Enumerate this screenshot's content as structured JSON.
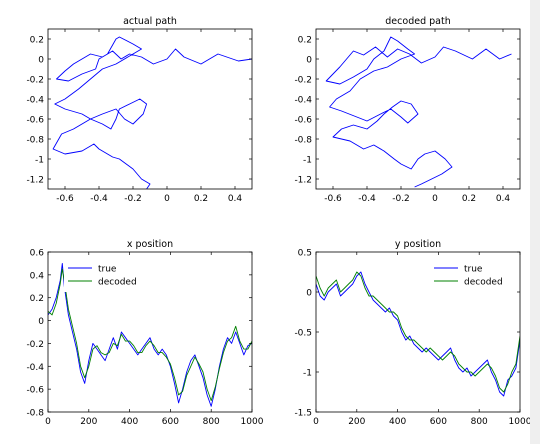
{
  "figure": {
    "background": "#ffffff",
    "axis_color": "#000000"
  },
  "chart_data": [
    {
      "type": "line",
      "title": "actual path",
      "xlabel": "",
      "ylabel": "",
      "xlim": [
        -0.7,
        0.5
      ],
      "ylim": [
        -1.3,
        0.3
      ],
      "xticks": [
        -0.6,
        -0.4,
        -0.2,
        0,
        0.2,
        0.4
      ],
      "xtick_labels": [
        "-0.6",
        "-0.4",
        "-0.2",
        "0",
        "0.2",
        "0.4"
      ],
      "yticks": [
        0.2,
        0,
        -0.2,
        -0.4,
        -0.6,
        -0.8,
        -1,
        -1.2
      ],
      "ytick_labels": [
        "0.2",
        "0",
        "-0.2",
        "-0.4",
        "-0.6",
        "-0.8",
        "-1",
        "-1.2"
      ],
      "grid": false,
      "series": [
        {
          "color": "#0000ff",
          "x": [
            0.5,
            0.42,
            0.3,
            0.2,
            0.1,
            0.05,
            0.0,
            -0.08,
            -0.15,
            -0.22,
            -0.27,
            -0.32,
            -0.38,
            -0.45,
            -0.5,
            -0.55,
            -0.6,
            -0.65,
            -0.58,
            -0.5,
            -0.42,
            -0.4,
            -0.35,
            -0.3,
            -0.28,
            -0.2,
            -0.15,
            -0.22,
            -0.3,
            -0.38,
            -0.45,
            -0.52,
            -0.6,
            -0.66,
            -0.6,
            -0.5,
            -0.45,
            -0.38,
            -0.3,
            -0.25,
            -0.2,
            -0.14,
            -0.12,
            -0.16,
            -0.22,
            -0.28,
            -0.3,
            -0.33,
            -0.38,
            -0.45,
            -0.55,
            -0.62,
            -0.67,
            -0.6,
            -0.5,
            -0.43,
            -0.4,
            -0.32,
            -0.28,
            -0.24,
            -0.2,
            -0.15,
            -0.1,
            -0.12
          ],
          "y": [
            0.0,
            -0.02,
            0.05,
            -0.05,
            0.02,
            0.1,
            0.0,
            -0.05,
            0.02,
            0.05,
            0.0,
            0.08,
            0.02,
            0.05,
            0.0,
            -0.05,
            -0.12,
            -0.2,
            -0.22,
            -0.15,
            -0.1,
            0.0,
            0.05,
            0.2,
            0.22,
            0.15,
            0.1,
            0.03,
            -0.05,
            -0.1,
            -0.2,
            -0.3,
            -0.4,
            -0.45,
            -0.5,
            -0.55,
            -0.6,
            -0.55,
            -0.5,
            -0.6,
            -0.65,
            -0.55,
            -0.45,
            -0.4,
            -0.45,
            -0.5,
            -0.6,
            -0.7,
            -0.65,
            -0.6,
            -0.7,
            -0.75,
            -0.9,
            -0.95,
            -0.92,
            -0.85,
            -0.9,
            -0.98,
            -1.0,
            -1.05,
            -1.1,
            -1.2,
            -1.25,
            -1.3
          ]
        }
      ]
    },
    {
      "type": "line",
      "title": "decoded path",
      "xlabel": "",
      "ylabel": "",
      "xlim": [
        -0.7,
        0.5
      ],
      "ylim": [
        -1.3,
        0.3
      ],
      "xticks": [
        -0.6,
        -0.4,
        -0.2,
        0,
        0.2,
        0.4
      ],
      "xtick_labels": [
        "-0.6",
        "-0.4",
        "-0.2",
        "0",
        "0.2",
        "0.4"
      ],
      "yticks": [
        0.2,
        0,
        -0.2,
        -0.4,
        -0.6,
        -0.8,
        -1,
        -1.2
      ],
      "ytick_labels": [
        "0.2",
        "0",
        "-0.2",
        "-0.4",
        "-0.6",
        "-0.8",
        "-1",
        "-1.2"
      ],
      "grid": false,
      "series": [
        {
          "color": "#0000ff",
          "x": [
            0.45,
            0.38,
            0.3,
            0.22,
            0.12,
            0.05,
            0.0,
            -0.08,
            -0.15,
            -0.22,
            -0.28,
            -0.35,
            -0.42,
            -0.48,
            -0.52,
            -0.56,
            -0.6,
            -0.64,
            -0.56,
            -0.48,
            -0.4,
            -0.36,
            -0.3,
            -0.26,
            -0.22,
            -0.16,
            -0.12,
            -0.2,
            -0.28,
            -0.36,
            -0.44,
            -0.5,
            -0.58,
            -0.62,
            -0.55,
            -0.46,
            -0.4,
            -0.32,
            -0.26,
            -0.2,
            -0.16,
            -0.1,
            -0.14,
            -0.2,
            -0.25,
            -0.3,
            -0.34,
            -0.4,
            -0.48,
            -0.55,
            -0.6,
            -0.5,
            -0.42,
            -0.36,
            -0.3,
            -0.24,
            -0.2,
            -0.14,
            -0.1,
            -0.06,
            0.0,
            0.06,
            0.1,
            0.04,
            -0.02,
            -0.08,
            -0.12
          ],
          "y": [
            0.05,
            0.0,
            0.1,
            0.0,
            0.08,
            0.12,
            0.02,
            -0.04,
            0.05,
            0.1,
            0.02,
            0.12,
            0.04,
            0.08,
            0.0,
            -0.08,
            -0.15,
            -0.22,
            -0.25,
            -0.18,
            -0.1,
            0.0,
            0.08,
            0.22,
            0.18,
            0.1,
            0.05,
            0.0,
            -0.08,
            -0.12,
            -0.2,
            -0.32,
            -0.4,
            -0.48,
            -0.52,
            -0.58,
            -0.62,
            -0.55,
            -0.5,
            -0.58,
            -0.64,
            -0.55,
            -0.45,
            -0.42,
            -0.48,
            -0.55,
            -0.62,
            -0.7,
            -0.66,
            -0.7,
            -0.78,
            -0.82,
            -0.9,
            -0.86,
            -0.92,
            -1.0,
            -1.05,
            -1.1,
            -1.0,
            -0.95,
            -0.92,
            -1.0,
            -1.08,
            -1.15,
            -1.2,
            -1.25,
            -1.28
          ]
        }
      ]
    },
    {
      "type": "line",
      "title": "x position",
      "xlabel": "",
      "ylabel": "",
      "xlim": [
        0,
        1000
      ],
      "ylim": [
        -0.8,
        0.6
      ],
      "xticks": [
        0,
        200,
        400,
        600,
        800,
        1000
      ],
      "xtick_labels": [
        "0",
        "200",
        "400",
        "600",
        "800",
        "1000"
      ],
      "yticks": [
        0.6,
        0.4,
        0.2,
        0,
        -0.2,
        -0.4,
        -0.6,
        -0.8
      ],
      "ytick_labels": [
        "0.6",
        "0.4",
        "0.2",
        "0",
        "-0.2",
        "-0.4",
        "-0.6",
        "-0.8"
      ],
      "grid": false,
      "legend": "top-left",
      "x": [
        0,
        20,
        40,
        60,
        70,
        80,
        100,
        120,
        140,
        160,
        180,
        200,
        220,
        240,
        260,
        280,
        300,
        320,
        340,
        360,
        380,
        400,
        420,
        440,
        460,
        480,
        500,
        520,
        540,
        560,
        580,
        600,
        620,
        640,
        660,
        680,
        700,
        720,
        740,
        760,
        780,
        800,
        820,
        840,
        860,
        880,
        900,
        920,
        940,
        960,
        980,
        1000
      ],
      "series": [
        {
          "name": "true",
          "color": "#0000ff",
          "values": [
            0.05,
            0.1,
            0.2,
            0.35,
            0.5,
            0.3,
            0.05,
            -0.1,
            -0.25,
            -0.45,
            -0.55,
            -0.35,
            -0.2,
            -0.25,
            -0.3,
            -0.35,
            -0.25,
            -0.15,
            -0.25,
            -0.1,
            -0.15,
            -0.2,
            -0.25,
            -0.3,
            -0.25,
            -0.2,
            -0.15,
            -0.25,
            -0.3,
            -0.25,
            -0.3,
            -0.4,
            -0.55,
            -0.72,
            -0.6,
            -0.45,
            -0.35,
            -0.3,
            -0.4,
            -0.5,
            -0.65,
            -0.75,
            -0.6,
            -0.4,
            -0.25,
            -0.15,
            -0.2,
            -0.1,
            -0.2,
            -0.3,
            -0.22,
            -0.2
          ]
        },
        {
          "name": "decoded",
          "color": "#008000",
          "values": [
            0.08,
            0.05,
            0.15,
            0.32,
            0.45,
            0.35,
            0.1,
            -0.05,
            -0.2,
            -0.4,
            -0.5,
            -0.4,
            -0.25,
            -0.22,
            -0.28,
            -0.3,
            -0.28,
            -0.2,
            -0.22,
            -0.12,
            -0.18,
            -0.18,
            -0.22,
            -0.28,
            -0.28,
            -0.22,
            -0.18,
            -0.22,
            -0.28,
            -0.28,
            -0.32,
            -0.38,
            -0.5,
            -0.65,
            -0.62,
            -0.48,
            -0.4,
            -0.32,
            -0.38,
            -0.45,
            -0.6,
            -0.7,
            -0.58,
            -0.42,
            -0.28,
            -0.18,
            -0.15,
            -0.05,
            -0.18,
            -0.25,
            -0.25,
            -0.18
          ]
        }
      ]
    },
    {
      "type": "line",
      "title": "y position",
      "xlabel": "",
      "ylabel": "",
      "xlim": [
        0,
        1000
      ],
      "ylim": [
        -1.5,
        0.5
      ],
      "xticks": [
        0,
        200,
        400,
        600,
        800,
        1000
      ],
      "xtick_labels": [
        "0",
        "200",
        "400",
        "600",
        "800",
        "1000"
      ],
      "yticks": [
        0.5,
        0,
        -0.5,
        -1,
        -1.5
      ],
      "ytick_labels": [
        "0.5",
        "0",
        "-0.5",
        "-1",
        "-1.5"
      ],
      "grid": false,
      "legend": "top-right",
      "x": [
        0,
        20,
        40,
        60,
        80,
        100,
        120,
        140,
        160,
        180,
        200,
        220,
        240,
        260,
        280,
        300,
        320,
        340,
        360,
        380,
        400,
        420,
        440,
        460,
        480,
        500,
        520,
        540,
        560,
        580,
        600,
        620,
        640,
        660,
        680,
        700,
        720,
        740,
        760,
        780,
        800,
        820,
        840,
        860,
        880,
        900,
        920,
        940,
        960,
        980,
        1000
      ],
      "series": [
        {
          "name": "true",
          "color": "#0000ff",
          "values": [
            0.1,
            -0.05,
            -0.1,
            0.0,
            0.05,
            0.1,
            -0.05,
            0.0,
            0.05,
            0.1,
            0.2,
            0.25,
            0.1,
            0.0,
            -0.1,
            -0.15,
            -0.2,
            -0.25,
            -0.2,
            -0.3,
            -0.35,
            -0.5,
            -0.6,
            -0.55,
            -0.65,
            -0.7,
            -0.75,
            -0.7,
            -0.75,
            -0.8,
            -0.85,
            -0.8,
            -0.75,
            -0.7,
            -0.85,
            -0.95,
            -1.0,
            -0.95,
            -1.05,
            -1.0,
            -0.95,
            -0.9,
            -0.85,
            -1.0,
            -1.1,
            -1.25,
            -1.3,
            -1.1,
            -1.05,
            -0.95,
            -0.6
          ]
        },
        {
          "name": "decoded",
          "color": "#008000",
          "values": [
            0.2,
            0.05,
            -0.05,
            0.05,
            0.1,
            0.15,
            0.0,
            0.05,
            0.1,
            0.15,
            0.25,
            0.2,
            0.05,
            -0.05,
            -0.05,
            -0.1,
            -0.15,
            -0.2,
            -0.25,
            -0.25,
            -0.3,
            -0.45,
            -0.55,
            -0.6,
            -0.6,
            -0.65,
            -0.7,
            -0.75,
            -0.7,
            -0.75,
            -0.8,
            -0.85,
            -0.8,
            -0.75,
            -0.8,
            -0.9,
            -0.95,
            -1.0,
            -1.0,
            -1.05,
            -1.0,
            -0.95,
            -0.9,
            -0.95,
            -1.05,
            -1.2,
            -1.25,
            -1.15,
            -1.0,
            -0.9,
            -0.55
          ]
        }
      ]
    }
  ]
}
